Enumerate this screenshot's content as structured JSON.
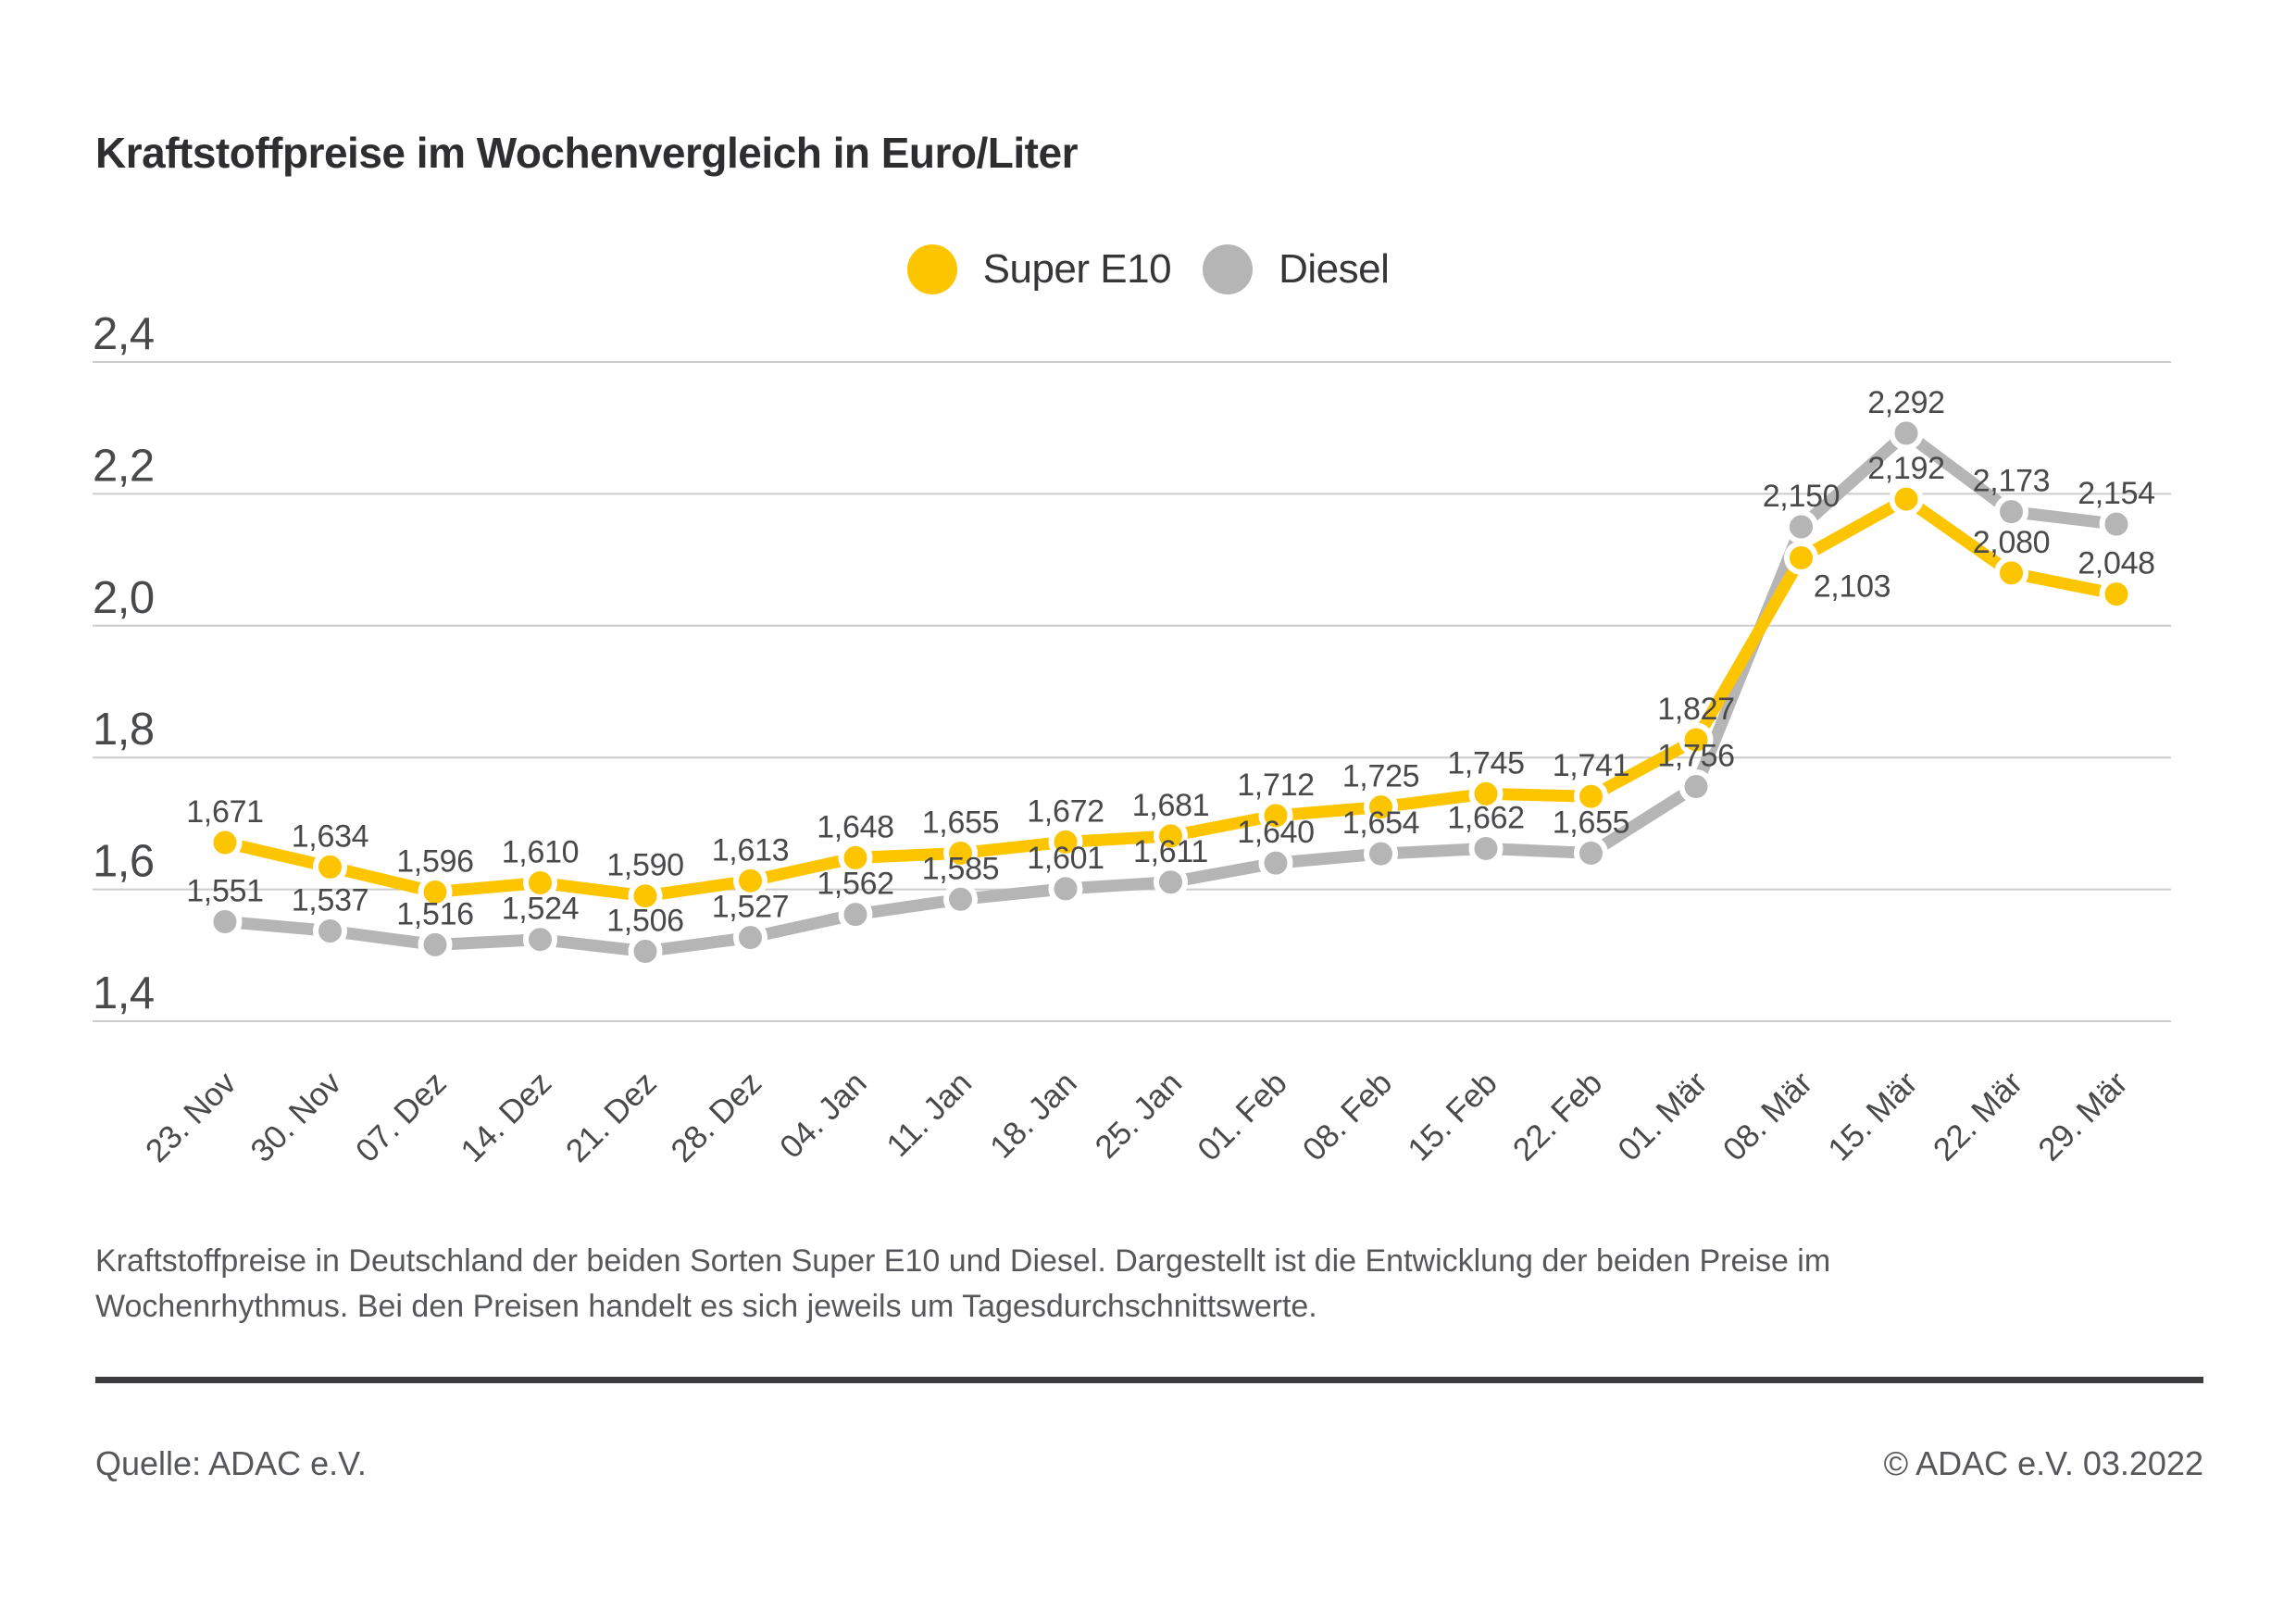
{
  "title": "Kraftstoffpreise im Wochenvergleich in Euro/Liter",
  "legend": [
    {
      "label": "Super E10",
      "color": "#FDC500"
    },
    {
      "label": "Diesel",
      "color": "#B5B5B6"
    }
  ],
  "chart_data": {
    "type": "line",
    "title": "Kraftstoffpreise im Wochenvergleich in Euro/Liter",
    "xlabel": "",
    "ylabel": "Euro/Liter",
    "x": [
      "23. Nov",
      "30. Nov",
      "07. Dez",
      "14. Dez",
      "21. Dez",
      "28. Dez",
      "04. Jan",
      "11. Jan",
      "18. Jan",
      "25. Jan",
      "01. Feb",
      "08. Feb",
      "15. Feb",
      "22. Feb",
      "01. Mär",
      "08. Mär",
      "15. Mär",
      "22. Mär",
      "29. Mär"
    ],
    "series": [
      {
        "name": "Super E10",
        "color": "#FDC500",
        "values": [
          1.671,
          1.634,
          1.596,
          1.61,
          1.59,
          1.613,
          1.648,
          1.655,
          1.672,
          1.681,
          1.712,
          1.725,
          1.745,
          1.741,
          1.827,
          2.103,
          2.192,
          2.08,
          2.048
        ],
        "labels": [
          "1,671",
          "1,634",
          "1,596",
          "1,610",
          "1,590",
          "1,613",
          "1,648",
          "1,655",
          "1,672",
          "1,681",
          "1,712",
          "1,725",
          "1,745",
          "1,741",
          "1,827",
          "2,103",
          "2,192",
          "2,080",
          "2,048"
        ],
        "label_offsets": {
          "15": [
            55,
            42
          ]
        }
      },
      {
        "name": "Diesel",
        "color": "#B5B5B6",
        "values": [
          1.551,
          1.537,
          1.516,
          1.524,
          1.506,
          1.527,
          1.562,
          1.585,
          1.601,
          1.611,
          1.64,
          1.654,
          1.662,
          1.655,
          1.756,
          2.15,
          2.292,
          2.173,
          2.154
        ],
        "labels": [
          "1,551",
          "1,537",
          "1,516",
          "1,524",
          "1,506",
          "1,527",
          "1,562",
          "1,585",
          "1,601",
          "1,611",
          "1,640",
          "1,654",
          "1,662",
          "1,655",
          "1,756",
          "2,150",
          "2,292",
          "2,173",
          "2,154"
        ],
        "label_offsets": {}
      }
    ],
    "ylim": [
      1.4,
      2.4
    ],
    "yticks": [
      2.4,
      2.2,
      2.0,
      1.8,
      1.6,
      1.4
    ],
    "ytick_labels": [
      "2,4",
      "2,2",
      "2,0",
      "1,8",
      "1,6",
      "1,4"
    ],
    "grid": true,
    "legend_position": "top-center",
    "value_label_color": "#48494b",
    "axis_label_color": "#48494b",
    "grid_color": "#cccccc"
  },
  "caption": {
    "line1": "Kraftstoffpreise in Deutschland der beiden Sorten Super E10 und Diesel. Dargestellt ist die Entwicklung der beiden Preise im",
    "line2": "Wochenrhythmus. Bei den Preisen handelt es sich jeweils um Tagesdurchschnittswerte."
  },
  "footer": {
    "source": "Quelle: ADAC e.V.",
    "copyright": "© ADAC e.V. 03.2022"
  }
}
